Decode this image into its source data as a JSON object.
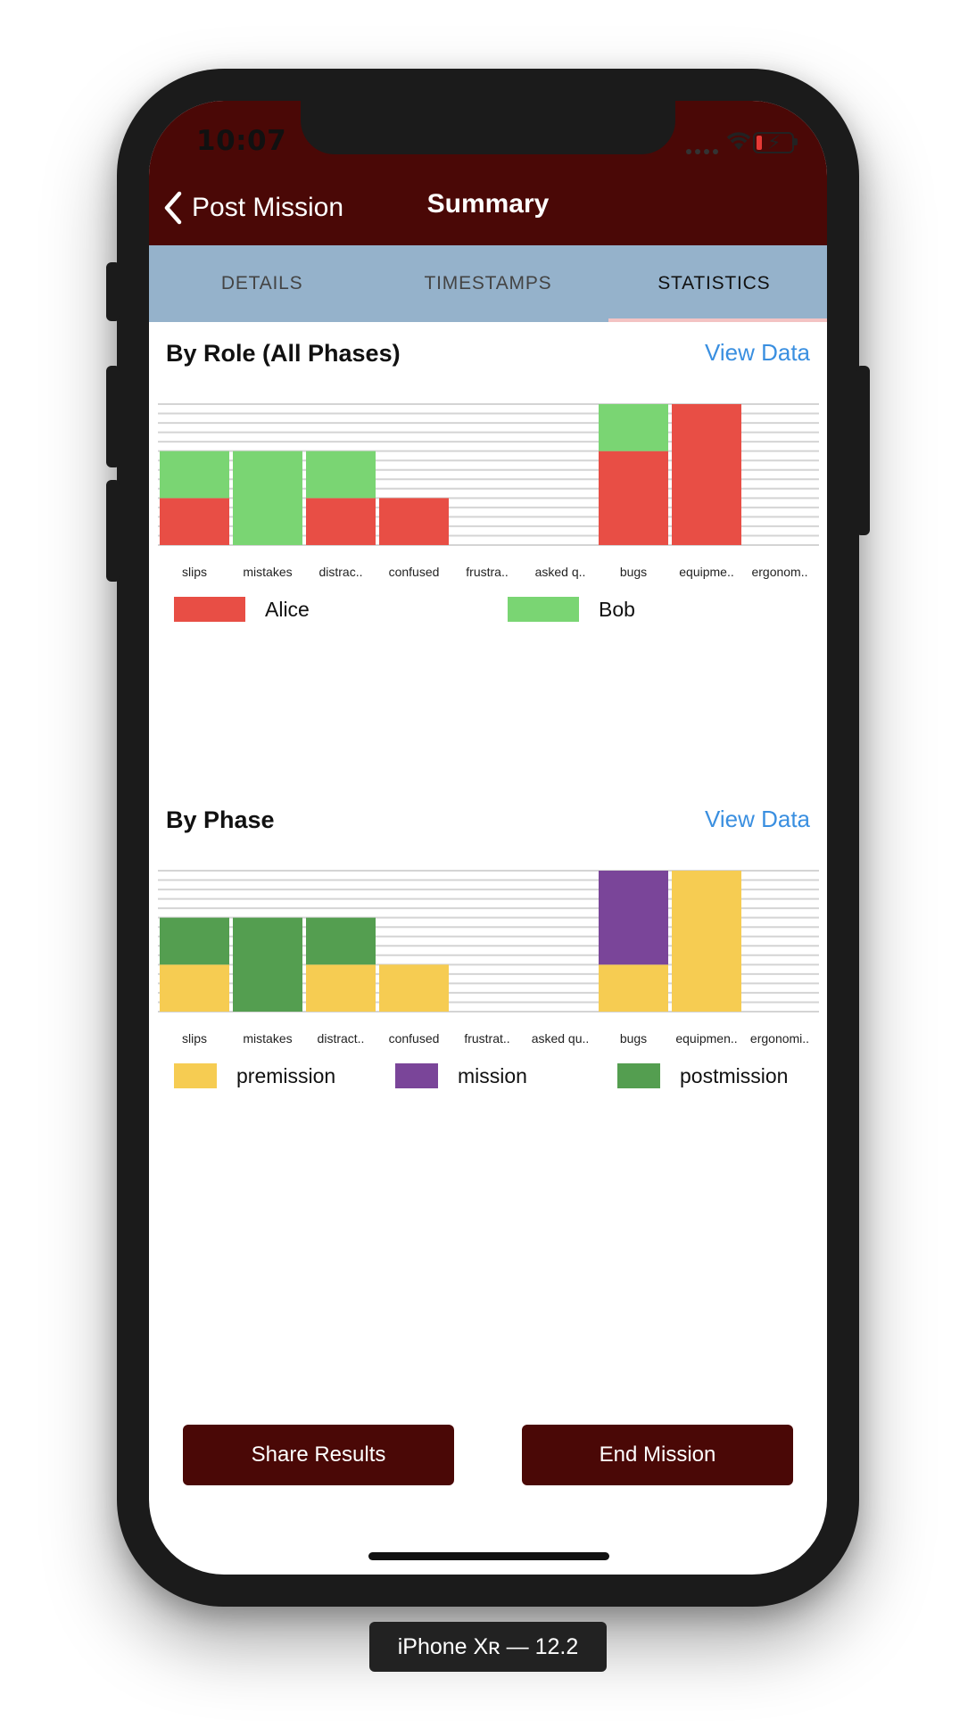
{
  "status": {
    "time": "10:07"
  },
  "nav": {
    "back_label": "Post Mission",
    "title": "Summary"
  },
  "tabs": [
    {
      "label": "DETAILS"
    },
    {
      "label": "TIMESTAMPS"
    },
    {
      "label": "STATISTICS",
      "active": true
    }
  ],
  "sections": {
    "role": {
      "title": "By Role (All Phases)",
      "link": "View Data"
    },
    "phase": {
      "title": "By Phase",
      "link": "View Data"
    }
  },
  "chart_data": [
    {
      "type": "bar",
      "stacked": true,
      "categories": [
        "slips",
        "mistakes",
        "distrac..",
        "confused",
        "frustra..",
        "asked q..",
        "bugs",
        "equipme..",
        "ergonom.."
      ],
      "series": [
        {
          "name": "Alice",
          "color": "#e84e45",
          "values": [
            1,
            0,
            1,
            1,
            0,
            0,
            2,
            3,
            0
          ]
        },
        {
          "name": "Bob",
          "color": "#7ad573",
          "values": [
            1,
            2,
            1,
            0,
            0,
            0,
            1,
            0,
            0
          ]
        }
      ],
      "ylim": [
        0,
        3
      ],
      "grid": true,
      "legend": "bottom"
    },
    {
      "type": "bar",
      "stacked": true,
      "categories": [
        "slips",
        "mistakes",
        "distract..",
        "confused",
        "frustrat..",
        "asked qu..",
        "bugs",
        "equipmen..",
        "ergonomi.."
      ],
      "series": [
        {
          "name": "premission",
          "color": "#f6cc52",
          "values": [
            1,
            0,
            1,
            1,
            0,
            0,
            1,
            3,
            0
          ]
        },
        {
          "name": "mission",
          "color": "#7a4599",
          "values": [
            0,
            0,
            0,
            0,
            0,
            0,
            2,
            0,
            0
          ]
        },
        {
          "name": "postmission",
          "color": "#549e50",
          "values": [
            1,
            2,
            1,
            0,
            0,
            0,
            0,
            0,
            0
          ]
        }
      ],
      "ylim": [
        0,
        3
      ],
      "grid": true,
      "legend": "bottom"
    }
  ],
  "actions": {
    "share": "Share Results",
    "end": "End Mission"
  },
  "device_label": "iPhone Xʀ — 12.2"
}
